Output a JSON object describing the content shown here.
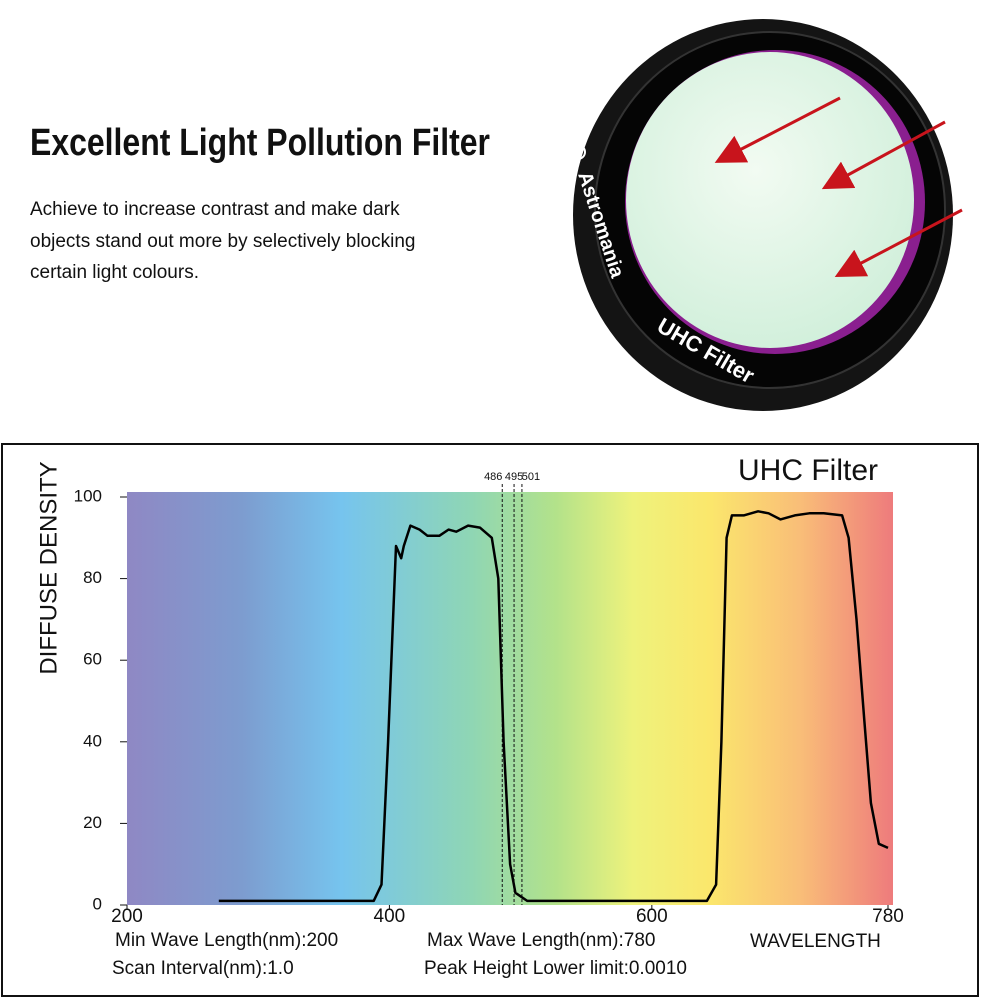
{
  "header": {
    "title": "Excellent Light Pollution Filter",
    "description": [
      "Achieve to increase contrast and make dark",
      "objects stand out more by selectively blocking",
      "certain light colours."
    ]
  },
  "product": {
    "brand": "Astromania",
    "model": "UHC Filter"
  },
  "chart_data": {
    "type": "line",
    "title": "UHC Filter",
    "y_label": "DIFFUSE DENSITY",
    "x_label": "WAVELENGTH",
    "notes": [
      "Min Wave Length(nm):200",
      "Max Wave Length(nm):780",
      "Scan Interval(nm):1.0",
      "Peak Height Lower limit:0.0010"
    ],
    "color": "#000000",
    "x": [
      270,
      388,
      394,
      399,
      405,
      409,
      411,
      416,
      423,
      429,
      438,
      445,
      451,
      460,
      469,
      478,
      483,
      487,
      492,
      496,
      505,
      642,
      649,
      653,
      657,
      661,
      670,
      681,
      689,
      698,
      709,
      720,
      731,
      745,
      750,
      756,
      762,
      767,
      773,
      780
    ],
    "values": [
      1,
      1,
      5,
      40,
      88,
      85,
      88,
      93,
      92,
      90.5,
      90.5,
      92,
      91.5,
      93,
      92.5,
      90,
      80,
      40,
      10,
      3,
      1,
      1,
      5,
      40,
      90,
      95.5,
      95.5,
      96.5,
      96,
      94.5,
      95.5,
      96,
      96,
      95.5,
      90,
      70,
      45,
      25,
      15,
      14
    ],
    "vlines": [
      486,
      495,
      501
    ],
    "xlim": [
      200,
      780
    ],
    "xticks": [
      200,
      400,
      600,
      780
    ],
    "ylim": [
      0,
      100
    ],
    "yticks": [
      0,
      20,
      40,
      60,
      80,
      100
    ]
  }
}
